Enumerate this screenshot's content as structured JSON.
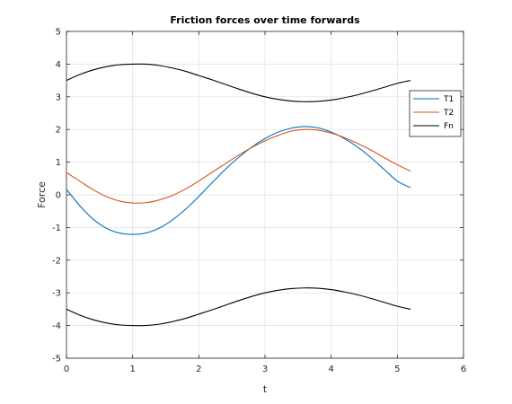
{
  "chart_data": {
    "type": "line",
    "title": "Friction forces over time forwards",
    "xlabel": "t",
    "ylabel": "Force",
    "xlim": [
      0,
      6
    ],
    "ylim": [
      -5,
      5
    ],
    "xticks": [
      0,
      1,
      2,
      3,
      4,
      5,
      6
    ],
    "yticks": [
      -5,
      -4,
      -3,
      -2,
      -1,
      0,
      1,
      2,
      3,
      4,
      5
    ],
    "grid": true,
    "legend_position": "top-right",
    "x": [
      0,
      0.2,
      0.4,
      0.6,
      0.8,
      1.0,
      1.2,
      1.4,
      1.6,
      1.8,
      2.0,
      2.2,
      2.4,
      2.6,
      2.8,
      3.0,
      3.2,
      3.4,
      3.6,
      3.8,
      4.0,
      4.2,
      4.4,
      4.6,
      4.8,
      5.0,
      5.2
    ],
    "series": [
      {
        "name": "T1",
        "color": "#0072BD",
        "values": [
          0.17,
          -0.33,
          -0.74,
          -1.02,
          -1.17,
          -1.21,
          -1.17,
          -1.02,
          -0.77,
          -0.44,
          -0.05,
          0.37,
          0.78,
          1.14,
          1.46,
          1.72,
          1.92,
          2.04,
          2.09,
          2.05,
          1.92,
          1.72,
          1.46,
          1.14,
          0.78,
          0.42,
          0.22
        ]
      },
      {
        "name": "T2",
        "color": "#D95319",
        "values": [
          0.68,
          0.42,
          0.16,
          -0.05,
          -0.19,
          -0.25,
          -0.24,
          -0.16,
          -0.02,
          0.18,
          0.42,
          0.69,
          0.95,
          1.21,
          1.45,
          1.65,
          1.82,
          1.95,
          2.0,
          1.98,
          1.89,
          1.75,
          1.57,
          1.37,
          1.14,
          0.92,
          0.72
        ]
      },
      {
        "name": "Fn",
        "color": "#000000",
        "values": [
          3.5,
          3.68,
          3.82,
          3.92,
          3.98,
          4.0,
          4.0,
          3.96,
          3.88,
          3.78,
          3.65,
          3.52,
          3.38,
          3.24,
          3.11,
          3.0,
          2.92,
          2.87,
          2.85,
          2.86,
          2.9,
          2.97,
          3.06,
          3.17,
          3.29,
          3.41,
          3.5
        ]
      },
      {
        "name": "",
        "color": "#000000",
        "values": [
          -3.5,
          -3.68,
          -3.82,
          -3.92,
          -3.98,
          -4.0,
          -4.0,
          -3.96,
          -3.88,
          -3.78,
          -3.65,
          -3.52,
          -3.38,
          -3.24,
          -3.11,
          -3.0,
          -2.92,
          -2.87,
          -2.85,
          -2.86,
          -2.9,
          -2.97,
          -3.06,
          -3.17,
          -3.29,
          -3.41,
          -3.5
        ]
      }
    ]
  }
}
